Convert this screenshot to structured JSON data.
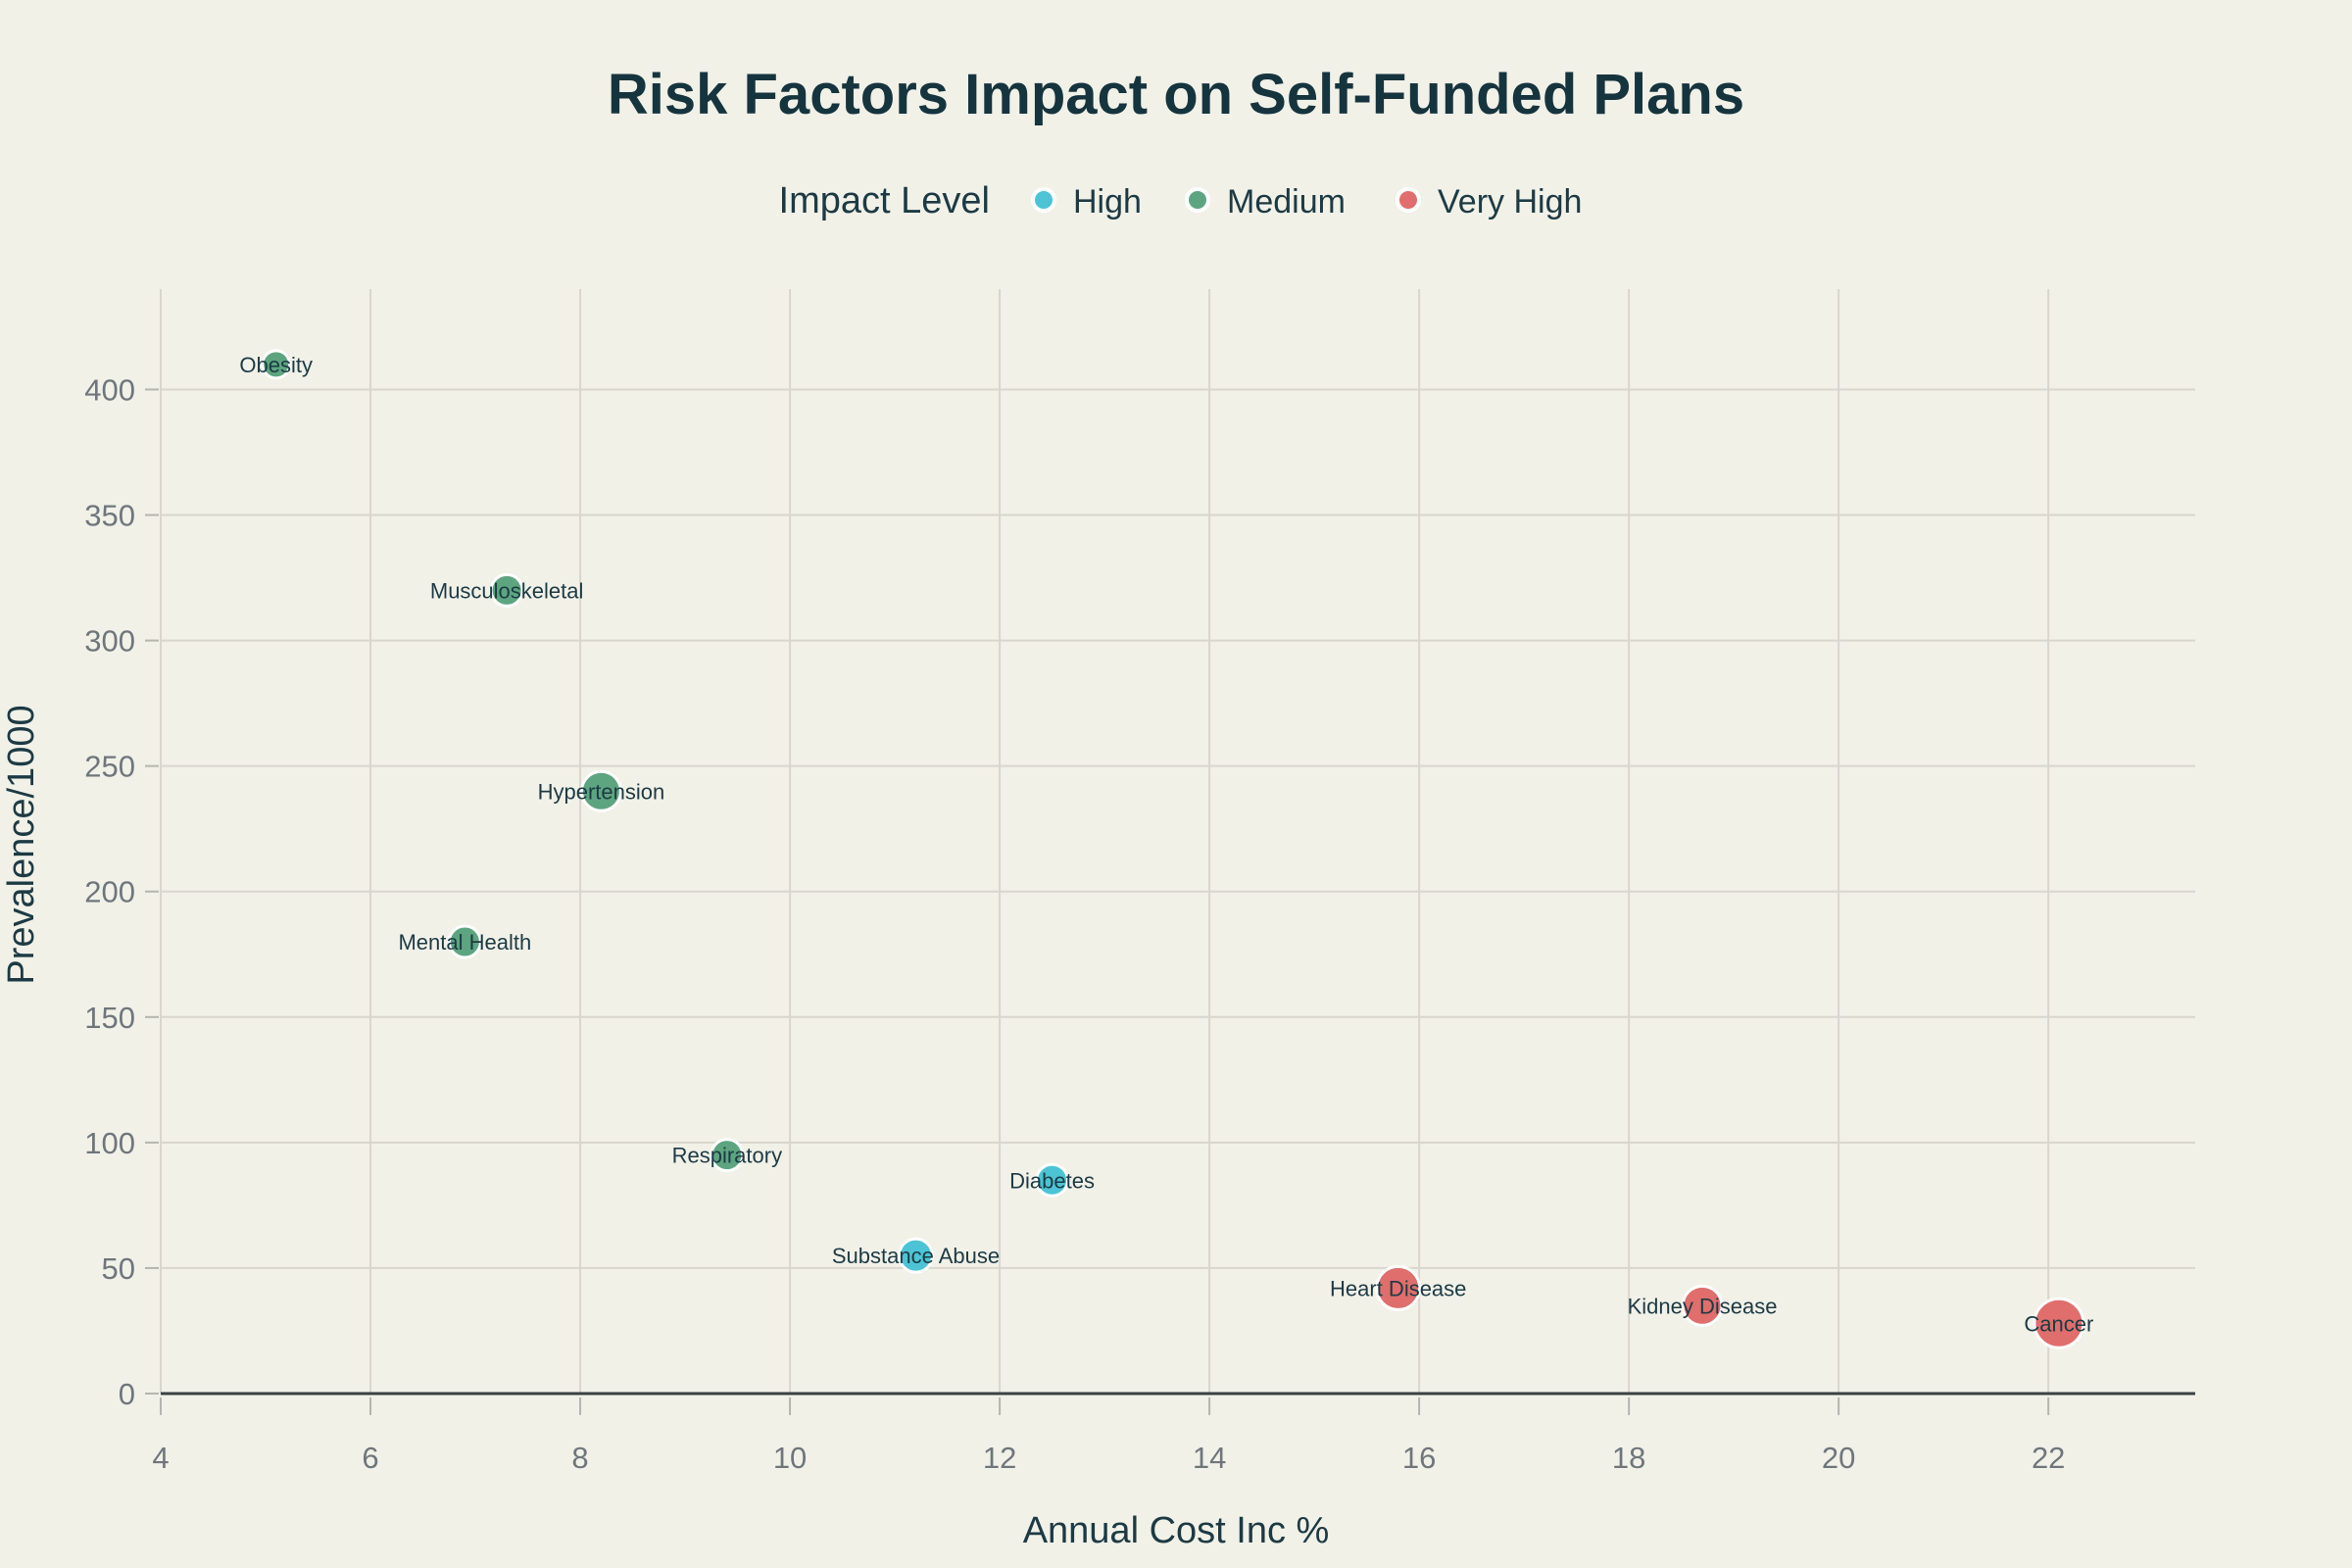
{
  "page": {
    "background": "#f1f1e8"
  },
  "colors": {
    "title": "#16343e",
    "axis_title": "#1d3a44",
    "tick_label": "#6f767c",
    "gridline": "#d8d6cd",
    "axis_line": "#3b4045",
    "tick_mark": "#b5b5ad",
    "point_label": "#1d3a44",
    "bubble_stroke": "#ffffff",
    "high": "#4cc4d5",
    "medium": "#5da580",
    "very_high": "#df6e6c"
  },
  "chart_data": {
    "type": "scatter",
    "subtype": "bubble",
    "title": "Risk Factors Impact on Self-Funded Plans",
    "legend_title": "Impact Level",
    "legend_position": "top",
    "xlabel": "Annual Cost Inc %",
    "ylabel": "Prevalence/1000",
    "xlim": [
      4,
      23.4
    ],
    "ylim": [
      0,
      440
    ],
    "x_ticks": [
      4,
      6,
      8,
      10,
      12,
      14,
      16,
      18,
      20,
      22
    ],
    "y_ticks": [
      0,
      50,
      100,
      150,
      200,
      250,
      300,
      350,
      400
    ],
    "grid": true,
    "series": [
      {
        "name": "High",
        "color_key": "high",
        "color": "#4cc4d5",
        "points": [
          {
            "label": "Diabetes",
            "x": 12.5,
            "y": 85,
            "r": 16
          },
          {
            "label": "Substance Abuse",
            "x": 11.2,
            "y": 55,
            "r": 17
          }
        ]
      },
      {
        "name": "Medium",
        "color_key": "medium",
        "color": "#5da580",
        "points": [
          {
            "label": "Obesity",
            "x": 5.1,
            "y": 410,
            "r": 14
          },
          {
            "label": "Musculoskeletal",
            "x": 7.3,
            "y": 320,
            "r": 16
          },
          {
            "label": "Hypertension",
            "x": 8.2,
            "y": 240,
            "r": 20
          },
          {
            "label": "Mental Health",
            "x": 6.9,
            "y": 180,
            "r": 16
          },
          {
            "label": "Respiratory",
            "x": 9.4,
            "y": 95,
            "r": 16
          }
        ]
      },
      {
        "name": "Very High",
        "color_key": "very_high",
        "color": "#df6e6c",
        "points": [
          {
            "label": "Heart Disease",
            "x": 15.8,
            "y": 42,
            "r": 22
          },
          {
            "label": "Kidney Disease",
            "x": 18.7,
            "y": 35,
            "r": 20
          },
          {
            "label": "Cancer",
            "x": 22.1,
            "y": 28,
            "r": 25
          }
        ]
      }
    ]
  }
}
